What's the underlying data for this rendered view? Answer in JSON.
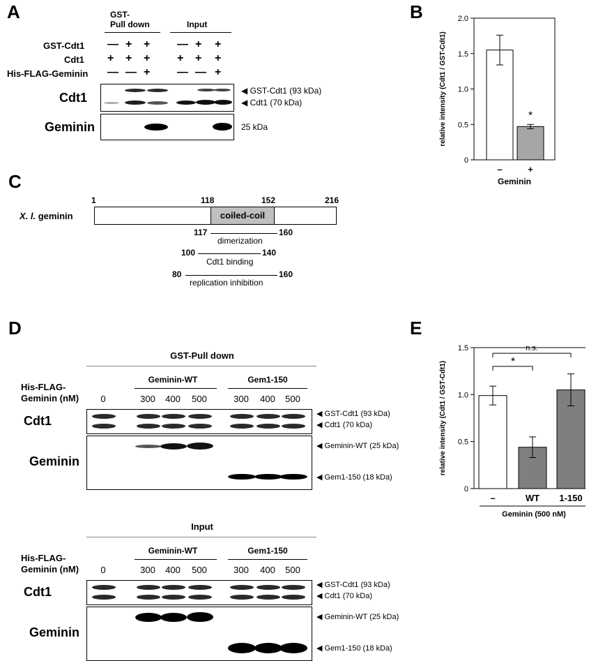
{
  "panelA": {
    "letter": "A",
    "header_pull": "GST-\nPull down",
    "header_pull_1": "GST-",
    "header_pull_2": "Pull down",
    "header_input": "Input",
    "row_labels": [
      "GST-Cdt1",
      "Cdt1",
      "His-FLAG-Geminin"
    ],
    "signs": [
      [
        "—",
        "+",
        "+",
        "—",
        "+",
        "+"
      ],
      [
        "+",
        "+",
        "+",
        "+",
        "+",
        "+"
      ],
      [
        "—",
        "—",
        "+",
        "—",
        "—",
        "+"
      ]
    ],
    "blot_labels": [
      "Cdt1",
      "Geminin"
    ],
    "band_labels": [
      "◀ GST-Cdt1 (93 kDa)",
      "◀ Cdt1 (70 kDa)",
      "25 kDa"
    ]
  },
  "panelB": {
    "letter": "B",
    "ylabel": "relative intensity (Cdt1 / GST-Cdt1)",
    "xlabel": "Geminin",
    "annotation": "*"
  },
  "panelC": {
    "letter": "C",
    "construct_label": "X. l. geminin",
    "construct_label_italic": "X. l.",
    "construct_label_rest": " geminin",
    "positions": [
      "1",
      "118",
      "152",
      "216"
    ],
    "domain": "coiled-coil",
    "regions": [
      {
        "start": "117",
        "end": "160",
        "name": "dimerization"
      },
      {
        "start": "100",
        "end": "140",
        "name": "Cdt1 binding"
      },
      {
        "start": "80",
        "end": "160",
        "name": "replication inhibition"
      }
    ]
  },
  "panelD": {
    "letter": "D",
    "sections": [
      {
        "title": "GST-Pull down",
        "conc_label_1": "His-FLAG-",
        "conc_label_2": "Geminin (nM)",
        "groups": [
          "Geminin-WT",
          "Gem1-150"
        ],
        "concs": [
          "0",
          "300",
          "400",
          "500",
          "300",
          "400",
          "500"
        ],
        "blot_labels": [
          "Cdt1",
          "Geminin"
        ],
        "band_labels": [
          "◀ GST-Cdt1 (93 kDa)",
          "◀ Cdt1 (70 kDa)",
          "◀ Geminin-WT (25 kDa)",
          "◀ Gem1-150 (18 kDa)"
        ]
      },
      {
        "title": "Input",
        "conc_label_1": "His-FLAG-",
        "conc_label_2": "Geminin (nM)",
        "groups": [
          "Geminin-WT",
          "Gem1-150"
        ],
        "concs": [
          "0",
          "300",
          "400",
          "500",
          "300",
          "400",
          "500"
        ],
        "blot_labels": [
          "Cdt1",
          "Geminin"
        ],
        "band_labels": [
          "◀ GST-Cdt1 (93 kDa)",
          "◀ Cdt1 (70 kDa)",
          "◀ Geminin-WT (25 kDa)",
          "◀ Gem1-150 (18 kDa)"
        ]
      }
    ]
  },
  "panelE": {
    "letter": "E",
    "ylabel": "relative intensity (Cdt1 / GST-Cdt1)",
    "xlabel": "Geminin (500 nM)",
    "sig_labels": [
      "*",
      "n.s."
    ]
  },
  "chart_data": [
    {
      "type": "bar",
      "categories": [
        "–",
        "+"
      ],
      "values": [
        1.55,
        0.47
      ],
      "errors": [
        0.21,
        0.03
      ],
      "bar_colors": [
        "#ffffff",
        "#a6a6a6"
      ],
      "ylim": [
        0,
        2.0
      ],
      "yticks": [
        "0",
        "0.5",
        "1.0",
        "1.5",
        "2.0"
      ],
      "ylabel": "relative intensity (Cdt1 / GST-Cdt1)",
      "xlabel": "Geminin"
    },
    {
      "type": "bar",
      "categories": [
        "–",
        "WT",
        "1-150"
      ],
      "values": [
        0.99,
        0.44,
        1.05
      ],
      "errors": [
        0.1,
        0.11,
        0.17
      ],
      "bar_colors": [
        "#ffffff",
        "#7f7f7f",
        "#7f7f7f"
      ],
      "ylim": [
        0,
        1.5
      ],
      "yticks": [
        "0",
        "0.5",
        "1.0",
        "1.5"
      ],
      "ylabel": "relative intensity (Cdt1 / GST-Cdt1)",
      "xlabel": "Geminin (500 nM)"
    }
  ]
}
